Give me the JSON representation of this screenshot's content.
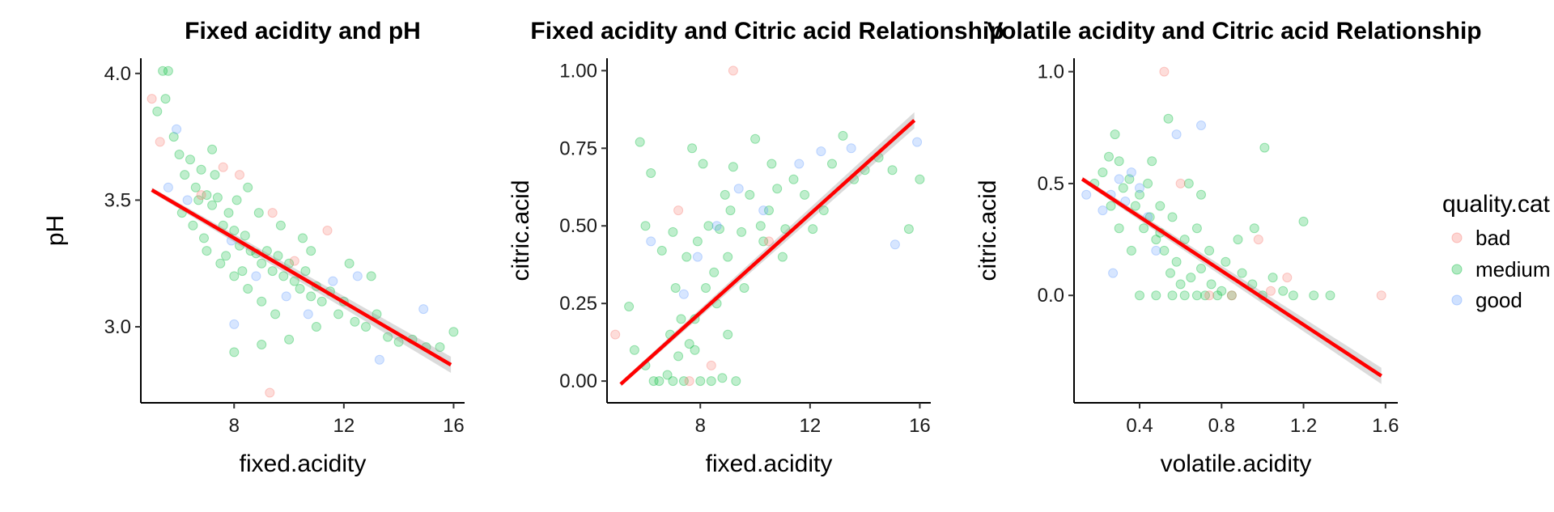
{
  "legend": {
    "title": "quality.cat",
    "entries": [
      {
        "label": "bad",
        "color": "#F8766D"
      },
      {
        "label": "medium",
        "color": "#00BA38"
      },
      {
        "label": "good",
        "color": "#619CFF"
      }
    ]
  },
  "chart_data": [
    {
      "type": "scatter",
      "title": "Fixed acidity and pH",
      "xlabel": "fixed.acidity",
      "ylabel": "pH",
      "xlim": [
        4.6,
        16.4
      ],
      "ylim": [
        2.7,
        4.06
      ],
      "xticks": [
        8,
        12,
        16
      ],
      "xtick_labels": [
        "8",
        "12",
        "16"
      ],
      "yticks": [
        3.0,
        3.5,
        4.0
      ],
      "ytick_labels": [
        "3.0",
        "3.5",
        "4.0"
      ],
      "grid": false,
      "trend_line": {
        "x": [
          5.0,
          15.9
        ],
        "y": [
          3.54,
          2.85
        ],
        "color": "#ff0000"
      },
      "series": [
        {
          "name": "medium",
          "points": [
            [
              5.2,
              3.85
            ],
            [
              5.4,
              4.01
            ],
            [
              5.6,
              4.01
            ],
            [
              5.5,
              3.9
            ],
            [
              5.8,
              3.75
            ],
            [
              6.0,
              3.68
            ],
            [
              6.2,
              3.6
            ],
            [
              6.4,
              3.66
            ],
            [
              6.6,
              3.55
            ],
            [
              6.8,
              3.62
            ],
            [
              7.0,
              3.52
            ],
            [
              7.2,
              3.48
            ],
            [
              7.4,
              3.51
            ],
            [
              7.6,
              3.4
            ],
            [
              7.8,
              3.45
            ],
            [
              8.0,
              3.38
            ],
            [
              8.2,
              3.32
            ],
            [
              8.4,
              3.36
            ],
            [
              8.6,
              3.3
            ],
            [
              8.8,
              3.29
            ],
            [
              9.0,
              3.25
            ],
            [
              9.2,
              3.3
            ],
            [
              9.4,
              3.22
            ],
            [
              9.6,
              3.28
            ],
            [
              9.8,
              3.2
            ],
            [
              10.0,
              3.25
            ],
            [
              10.2,
              3.18
            ],
            [
              10.4,
              3.15
            ],
            [
              10.6,
              3.22
            ],
            [
              10.8,
              3.12
            ],
            [
              11.0,
              3.16
            ],
            [
              11.2,
              3.1
            ],
            [
              11.5,
              3.14
            ],
            [
              11.8,
              3.05
            ],
            [
              12.0,
              3.1
            ],
            [
              12.4,
              3.02
            ],
            [
              12.8,
              3.0
            ],
            [
              13.2,
              3.05
            ],
            [
              13.6,
              2.96
            ],
            [
              14.0,
              2.94
            ],
            [
              14.5,
              2.95
            ],
            [
              15.0,
              2.92
            ],
            [
              15.5,
              2.92
            ],
            [
              16.0,
              2.98
            ],
            [
              6.5,
              3.4
            ],
            [
              7.0,
              3.3
            ],
            [
              7.5,
              3.25
            ],
            [
              8.0,
              3.2
            ],
            [
              8.5,
              3.15
            ],
            [
              9.0,
              3.1
            ],
            [
              7.3,
              3.6
            ],
            [
              8.1,
              3.5
            ],
            [
              8.9,
              3.45
            ],
            [
              9.7,
              3.4
            ],
            [
              10.5,
              3.35
            ],
            [
              6.1,
              3.45
            ],
            [
              6.9,
              3.35
            ],
            [
              7.7,
              3.28
            ],
            [
              8.3,
              3.22
            ],
            [
              9.5,
              3.05
            ],
            [
              8.0,
              2.9
            ],
            [
              9.0,
              2.93
            ],
            [
              10.0,
              2.95
            ],
            [
              11.0,
              3.0
            ],
            [
              8.5,
              3.55
            ],
            [
              7.2,
              3.7
            ],
            [
              6.7,
              3.5
            ],
            [
              10.8,
              3.3
            ],
            [
              12.2,
              3.25
            ],
            [
              13.0,
              3.2
            ]
          ]
        },
        {
          "name": "bad",
          "points": [
            [
              5.0,
              3.9
            ],
            [
              5.3,
              3.73
            ],
            [
              7.6,
              3.63
            ],
            [
              9.4,
              3.45
            ],
            [
              9.3,
              2.74
            ],
            [
              11.4,
              3.38
            ],
            [
              8.2,
              3.6
            ],
            [
              10.2,
              3.26
            ],
            [
              6.8,
              3.52
            ]
          ]
        },
        {
          "name": "good",
          "points": [
            [
              5.6,
              3.55
            ],
            [
              5.9,
              3.78
            ],
            [
              7.9,
              3.34
            ],
            [
              8.8,
              3.2
            ],
            [
              9.9,
              3.12
            ],
            [
              11.6,
              3.18
            ],
            [
              12.5,
              3.2
            ],
            [
              14.9,
              3.07
            ],
            [
              13.3,
              2.87
            ],
            [
              10.7,
              3.05
            ],
            [
              8.0,
              3.01
            ],
            [
              6.3,
              3.5
            ]
          ]
        }
      ]
    },
    {
      "type": "scatter",
      "title": "Fixed acidity and Citric acid Relationship",
      "xlabel": "fixed.acidity",
      "ylabel": "citric.acid",
      "xlim": [
        4.6,
        16.4
      ],
      "ylim": [
        -0.07,
        1.04
      ],
      "xticks": [
        8,
        12,
        16
      ],
      "xtick_labels": [
        "8",
        "12",
        "16"
      ],
      "yticks": [
        0.0,
        0.25,
        0.5,
        0.75,
        1.0
      ],
      "ytick_labels": [
        "0.00",
        "0.25",
        "0.50",
        "0.75",
        "1.00"
      ],
      "grid": false,
      "trend_line": {
        "x": [
          5.1,
          15.8
        ],
        "y": [
          -0.01,
          0.84
        ],
        "color": "#ff0000"
      },
      "series": [
        {
          "name": "medium",
          "points": [
            [
              5.6,
              0.1
            ],
            [
              6.0,
              0.05
            ],
            [
              6.3,
              0.0
            ],
            [
              6.5,
              0.0
            ],
            [
              6.8,
              0.02
            ],
            [
              7.0,
              0.0
            ],
            [
              7.2,
              0.08
            ],
            [
              7.4,
              0.0
            ],
            [
              7.6,
              0.12
            ],
            [
              7.8,
              0.2
            ],
            [
              8.0,
              0.0
            ],
            [
              8.2,
              0.3
            ],
            [
              8.4,
              0.0
            ],
            [
              8.6,
              0.25
            ],
            [
              8.8,
              0.01
            ],
            [
              9.0,
              0.4
            ],
            [
              9.3,
              0.0
            ],
            [
              7.1,
              0.3
            ],
            [
              7.5,
              0.4
            ],
            [
              7.9,
              0.45
            ],
            [
              8.3,
              0.5
            ],
            [
              8.7,
              0.49
            ],
            [
              9.1,
              0.55
            ],
            [
              9.5,
              0.48
            ],
            [
              9.8,
              0.6
            ],
            [
              10.2,
              0.5
            ],
            [
              10.5,
              0.55
            ],
            [
              10.8,
              0.62
            ],
            [
              11.1,
              0.49
            ],
            [
              11.4,
              0.65
            ],
            [
              11.8,
              0.6
            ],
            [
              12.1,
              0.49
            ],
            [
              12.5,
              0.55
            ],
            [
              12.8,
              0.7
            ],
            [
              13.2,
              0.79
            ],
            [
              13.6,
              0.65
            ],
            [
              14.0,
              0.68
            ],
            [
              14.5,
              0.72
            ],
            [
              15.0,
              0.68
            ],
            [
              15.6,
              0.49
            ],
            [
              16.0,
              0.65
            ],
            [
              5.8,
              0.77
            ],
            [
              6.2,
              0.67
            ],
            [
              7.7,
              0.75
            ],
            [
              8.1,
              0.7
            ],
            [
              9.2,
              0.69
            ],
            [
              10.0,
              0.78
            ],
            [
              10.6,
              0.7
            ],
            [
              6.0,
              0.5
            ],
            [
              6.6,
              0.42
            ],
            [
              7.3,
              0.2
            ],
            [
              8.5,
              0.35
            ],
            [
              9.0,
              0.15
            ],
            [
              9.6,
              0.3
            ],
            [
              10.3,
              0.45
            ],
            [
              11.0,
              0.4
            ],
            [
              7.0,
              0.48
            ],
            [
              7.8,
              0.1
            ],
            [
              8.9,
              0.6
            ],
            [
              5.4,
              0.24
            ],
            [
              6.9,
              0.15
            ]
          ]
        },
        {
          "name": "bad",
          "points": [
            [
              4.9,
              0.15
            ],
            [
              9.2,
              1.0
            ],
            [
              7.2,
              0.55
            ],
            [
              10.5,
              0.45
            ],
            [
              7.6,
              0.0
            ],
            [
              8.4,
              0.05
            ]
          ]
        },
        {
          "name": "good",
          "points": [
            [
              6.2,
              0.45
            ],
            [
              7.9,
              0.4
            ],
            [
              9.4,
              0.62
            ],
            [
              10.3,
              0.55
            ],
            [
              11.6,
              0.7
            ],
            [
              12.4,
              0.74
            ],
            [
              13.5,
              0.75
            ],
            [
              15.1,
              0.44
            ],
            [
              15.9,
              0.77
            ],
            [
              7.4,
              0.28
            ],
            [
              8.6,
              0.5
            ]
          ]
        }
      ]
    },
    {
      "type": "scatter",
      "title": "Volatile acidity and Citric acid Relationship",
      "xlabel": "volatile.acidity",
      "ylabel": "citric.acid",
      "xlim": [
        0.08,
        1.66
      ],
      "ylim": [
        -0.48,
        1.06
      ],
      "xticks": [
        0.4,
        0.8,
        1.2,
        1.6
      ],
      "xtick_labels": [
        "0.4",
        "0.8",
        "1.2",
        "1.6"
      ],
      "yticks": [
        0.0,
        0.5,
        1.0
      ],
      "ytick_labels": [
        "0.0",
        "0.5",
        "1.0"
      ],
      "grid": false,
      "trend_line": {
        "x": [
          0.12,
          1.58
        ],
        "y": [
          0.52,
          -0.36
        ],
        "color": "#ff0000"
      },
      "series": [
        {
          "name": "medium",
          "points": [
            [
              0.18,
              0.5
            ],
            [
              0.22,
              0.55
            ],
            [
              0.25,
              0.62
            ],
            [
              0.28,
              0.72
            ],
            [
              0.3,
              0.6
            ],
            [
              0.32,
              0.48
            ],
            [
              0.35,
              0.52
            ],
            [
              0.38,
              0.4
            ],
            [
              0.4,
              0.45
            ],
            [
              0.42,
              0.3
            ],
            [
              0.45,
              0.35
            ],
            [
              0.48,
              0.25
            ],
            [
              0.5,
              0.28
            ],
            [
              0.52,
              0.2
            ],
            [
              0.55,
              0.1
            ],
            [
              0.58,
              0.15
            ],
            [
              0.6,
              0.05
            ],
            [
              0.62,
              0.0
            ],
            [
              0.65,
              0.08
            ],
            [
              0.68,
              0.0
            ],
            [
              0.7,
              0.12
            ],
            [
              0.72,
              0.0
            ],
            [
              0.75,
              0.05
            ],
            [
              0.78,
              0.0
            ],
            [
              0.8,
              0.02
            ],
            [
              0.85,
              0.0
            ],
            [
              0.9,
              0.1
            ],
            [
              0.95,
              0.05
            ],
            [
              1.0,
              0.0
            ],
            [
              1.05,
              0.08
            ],
            [
              1.1,
              0.02
            ],
            [
              1.15,
              0.0
            ],
            [
              1.2,
              0.33
            ],
            [
              1.25,
              0.0
            ],
            [
              1.33,
              0.0
            ],
            [
              0.3,
              0.3
            ],
            [
              0.36,
              0.2
            ],
            [
              0.44,
              0.5
            ],
            [
              0.5,
              0.4
            ],
            [
              0.56,
              0.35
            ],
            [
              0.62,
              0.25
            ],
            [
              0.68,
              0.3
            ],
            [
              0.74,
              0.2
            ],
            [
              0.82,
              0.15
            ],
            [
              0.88,
              0.25
            ],
            [
              0.64,
              0.5
            ],
            [
              0.7,
              0.45
            ],
            [
              1.01,
              0.66
            ],
            [
              0.54,
              0.79
            ],
            [
              0.46,
              0.6
            ],
            [
              0.26,
              0.4
            ],
            [
              0.4,
              0.0
            ],
            [
              0.48,
              0.0
            ],
            [
              0.56,
              0.0
            ],
            [
              0.96,
              0.3
            ]
          ]
        },
        {
          "name": "bad",
          "points": [
            [
              0.52,
              1.0
            ],
            [
              1.58,
              0.0
            ],
            [
              1.04,
              0.02
            ],
            [
              1.12,
              0.08
            ],
            [
              0.98,
              0.25
            ],
            [
              0.85,
              0.0
            ],
            [
              0.6,
              0.5
            ],
            [
              0.74,
              0.0
            ]
          ]
        },
        {
          "name": "good",
          "points": [
            [
              0.22,
              0.38
            ],
            [
              0.26,
              0.45
            ],
            [
              0.3,
              0.52
            ],
            [
              0.33,
              0.42
            ],
            [
              0.36,
              0.55
            ],
            [
              0.4,
              0.48
            ],
            [
              0.44,
              0.35
            ],
            [
              0.27,
              0.1
            ],
            [
              0.58,
              0.72
            ],
            [
              0.7,
              0.76
            ],
            [
              0.48,
              0.2
            ],
            [
              0.14,
              0.45
            ]
          ]
        }
      ]
    }
  ]
}
